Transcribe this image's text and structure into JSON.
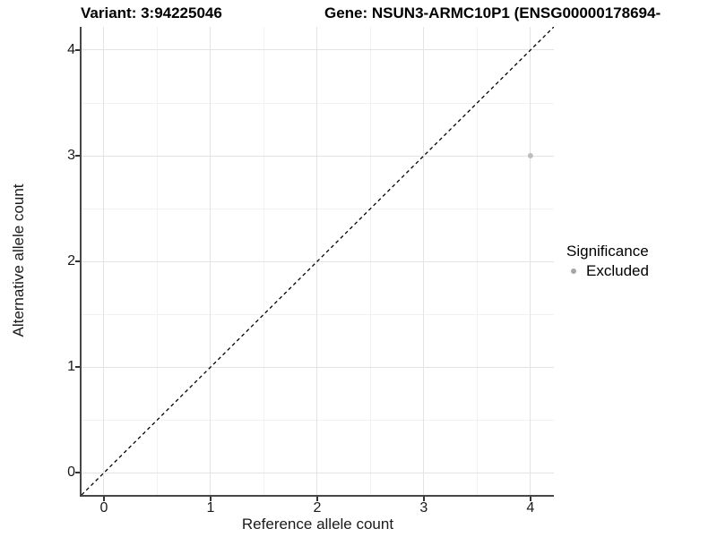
{
  "figure": {
    "title_left": "Variant: 3:94225046",
    "title_right": "Gene: NSUN3-ARMC10P1 (ENSG00000178694-"
  },
  "chart_data": {
    "type": "scatter",
    "xlabel": "Reference allele count",
    "ylabel": "Alternative allele count",
    "xlim": [
      -0.21,
      4.22
    ],
    "ylim": [
      -0.21,
      4.22
    ],
    "x_ticks": [
      0,
      1,
      2,
      3,
      4
    ],
    "y_ticks": [
      0,
      1,
      2,
      3,
      4
    ],
    "grid": {
      "major": true,
      "minor": true
    },
    "identity_line": {
      "slope": 1,
      "intercept": 0,
      "style": "dashed"
    },
    "series": [
      {
        "name": "Excluded",
        "points": [
          {
            "x": 4,
            "y": 3
          }
        ]
      }
    ],
    "legend": {
      "title": "Significance",
      "position": "right",
      "items": [
        {
          "label": "Excluded",
          "marker": "circle"
        }
      ]
    }
  },
  "colors": {
    "title_text": "#000000",
    "axis_text": "#1a1a1a",
    "axis_line": "#474747",
    "tick_mark": "#333333",
    "grid_major": "#E3E3E3",
    "grid_minor": "#F2F2F2",
    "identity_line": "#000000",
    "excluded_point": "#BDBDBD",
    "legend_point": "#A6A6A6",
    "background": "#FFFFFF"
  }
}
